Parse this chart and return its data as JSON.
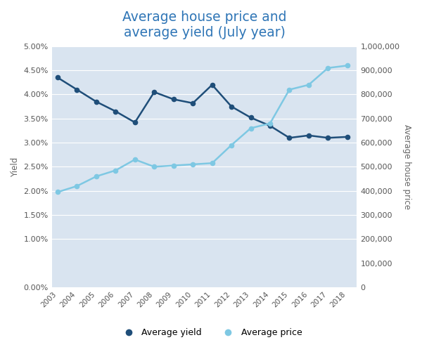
{
  "years": [
    2003,
    2004,
    2005,
    2006,
    2007,
    2008,
    2009,
    2010,
    2011,
    2012,
    2013,
    2014,
    2015,
    2016,
    2017,
    2018
  ],
  "avg_yield": [
    0.0435,
    0.041,
    0.0385,
    0.0365,
    0.0342,
    0.0405,
    0.039,
    0.0382,
    0.042,
    0.0375,
    0.0352,
    0.0335,
    0.031,
    0.0315,
    0.031,
    0.0312
  ],
  "avg_price": [
    395000,
    420000,
    460000,
    485000,
    530000,
    500000,
    505000,
    510000,
    515000,
    590000,
    660000,
    680000,
    820000,
    840000,
    910000,
    920000
  ],
  "yield_color": "#1f4e79",
  "price_color": "#7ec8e3",
  "bg_color": "#d9e4f0",
  "title_line1": "Average house price and",
  "title_line2": "average yield (July year)",
  "title_color": "#2e75b6",
  "ylabel_left": "Yield",
  "ylabel_right": "Average house price",
  "ylim_left": [
    0.0,
    0.05
  ],
  "ylim_right": [
    0,
    1000000
  ],
  "legend_yield": "Average yield",
  "legend_price": "Average price",
  "yticks_left": [
    0.0,
    0.01,
    0.015,
    0.02,
    0.025,
    0.03,
    0.035,
    0.04,
    0.045,
    0.05
  ],
  "yticks_right": [
    0,
    100000,
    200000,
    300000,
    400000,
    500000,
    600000,
    700000,
    800000,
    900000,
    1000000
  ]
}
